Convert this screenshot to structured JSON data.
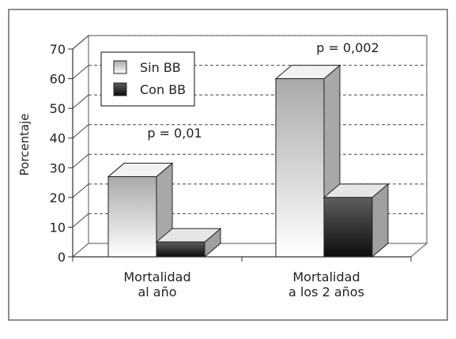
{
  "chart_data": {
    "type": "bar",
    "style": "3d",
    "ylabel": "Porcentaje",
    "ylim": [
      0,
      70
    ],
    "yticks": [
      0,
      10,
      20,
      30,
      40,
      50,
      60,
      70
    ],
    "grid": "dashed horizontal",
    "legend_position": "top-left",
    "categories": [
      "Mortalidad\nal año",
      "Mortalidad\na los 2 años"
    ],
    "series": [
      {
        "name": "Sin BB",
        "values": [
          27,
          60
        ]
      },
      {
        "name": "Con BB",
        "values": [
          5,
          20
        ]
      }
    ],
    "annotations": [
      "p = 0,01",
      "p = 0,002"
    ]
  },
  "colors": {
    "sin_bb_front_top": "#aaaaaa",
    "sin_bb_front_bottom": "#ffffff",
    "con_bb_front_top": "#555555",
    "con_bb_front_bottom": "#111111",
    "frame": "#555555"
  }
}
